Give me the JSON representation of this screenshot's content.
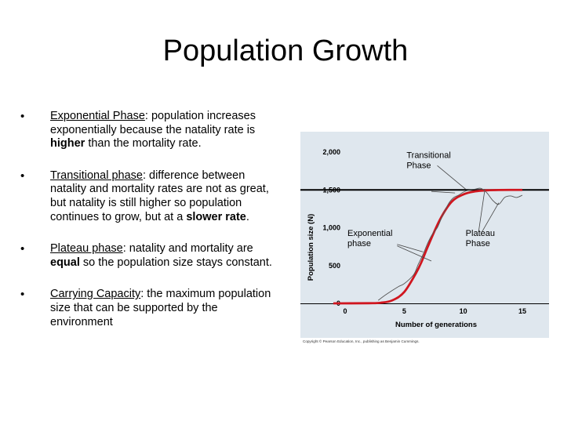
{
  "slide": {
    "title": "Population Growth",
    "bullets": [
      {
        "term": "Exponential Phase",
        "parts": [
          ": population increases exponentially because the natality rate is ",
          {
            "b": "higher"
          },
          " than the mortality rate."
        ]
      },
      {
        "term": "Transitional phase",
        "parts": [
          ": difference between natality and mortality rates are not as great, but natality is still higher so population continues to grow, but at a ",
          {
            "b": "slower rate"
          },
          "."
        ]
      },
      {
        "term": "Plateau phase",
        "parts": [
          ": natality and mortality are ",
          {
            "b": "equal"
          },
          " so the population size stays constant."
        ]
      },
      {
        "term": "Carrying Capacity",
        "parts": [
          ": the maximum population size that can be supported by the environment"
        ]
      }
    ],
    "copyright": "Copyright © Pearson Education, Inc., publishing as Benjamin Cummings."
  },
  "chart_data": {
    "type": "line",
    "xlabel": "Number of generations",
    "ylabel": "Population size (N)",
    "xlim": [
      0,
      15
    ],
    "ylim": [
      0,
      2000
    ],
    "xticks": [
      0,
      5,
      10,
      15
    ],
    "yticks": [
      0,
      500,
      1000,
      1500,
      2000
    ],
    "ytick_labels": [
      "0",
      "500",
      "1,000",
      "1,500",
      "2,000"
    ],
    "carrying_capacity": 1500,
    "annotations": [
      {
        "text": [
          "Transitional",
          "Phase"
        ],
        "x": 5.2,
        "y": 1920
      },
      {
        "text": [
          "Exponential",
          "phase"
        ],
        "x": 0.2,
        "y": 890
      },
      {
        "text": [
          "Plateau",
          "Phase"
        ],
        "x": 10.2,
        "y": 890
      }
    ],
    "series": [
      {
        "style": "smooth",
        "color": "#d0161f",
        "x": [
          -1,
          2,
          3,
          4,
          5,
          6,
          6.5,
          7,
          8,
          9,
          10,
          11,
          12,
          13,
          15
        ],
        "y": [
          0,
          2,
          8,
          40,
          150,
          400,
          560,
          750,
          1100,
          1340,
          1440,
          1480,
          1494,
          1499,
          1500
        ]
      },
      {
        "style": "observed",
        "color": "#555555",
        "x": [
          2.8,
          3.5,
          4.5,
          5.0,
          5.8,
          6.2,
          6.6,
          7.0,
          7.4,
          7.8,
          8.3,
          8.8,
          9.2,
          9.6,
          10.0,
          10.5,
          11.0,
          11.5,
          12.0,
          12.5,
          13.0,
          13.5,
          14.0,
          14.5,
          15.0
        ],
        "y": [
          40,
          120,
          220,
          260,
          380,
          520,
          650,
          800,
          920,
          1000,
          1180,
          1330,
          1400,
          1430,
          1470,
          1500,
          1510,
          1520,
          1460,
          1360,
          1310,
          1400,
          1420,
          1400,
          1430
        ]
      }
    ]
  }
}
